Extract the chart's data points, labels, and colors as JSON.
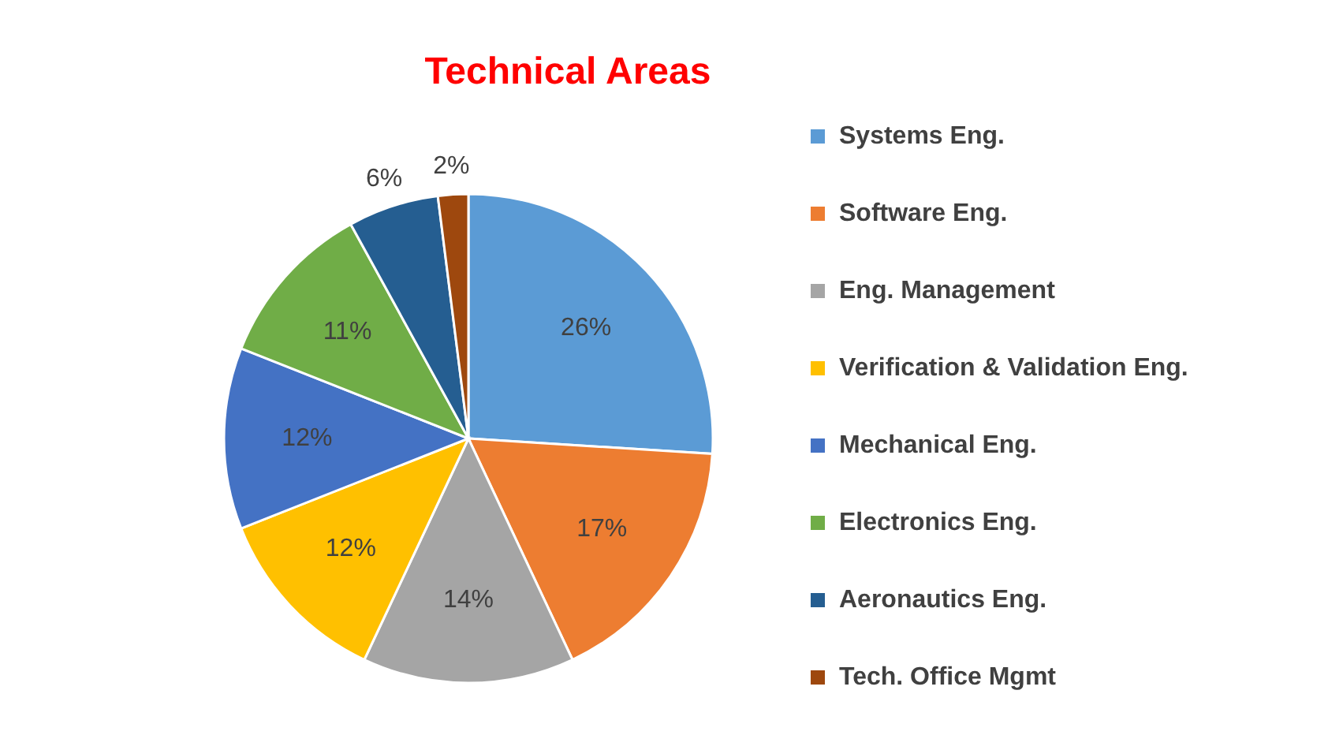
{
  "chart_data": {
    "type": "pie",
    "title": "Technical Areas",
    "categories": [
      "Systems Eng.",
      "Software Eng.",
      "Eng. Management",
      "Verification & Validation Eng.",
      "Mechanical Eng.",
      "Electronics Eng.",
      "Aeronautics Eng.",
      "Tech. Office Mgmt"
    ],
    "values": [
      26,
      17,
      14,
      12,
      12,
      11,
      6,
      2
    ],
    "colors": [
      "#5b9bd5",
      "#ed7d31",
      "#a5a5a5",
      "#ffc000",
      "#4472c4",
      "#70ad47",
      "#255e91",
      "#9e480e"
    ],
    "value_labels": [
      "26%",
      "17%",
      "14%",
      "12%",
      "12%",
      "11%",
      "6%",
      "2%"
    ],
    "legend": "right"
  }
}
